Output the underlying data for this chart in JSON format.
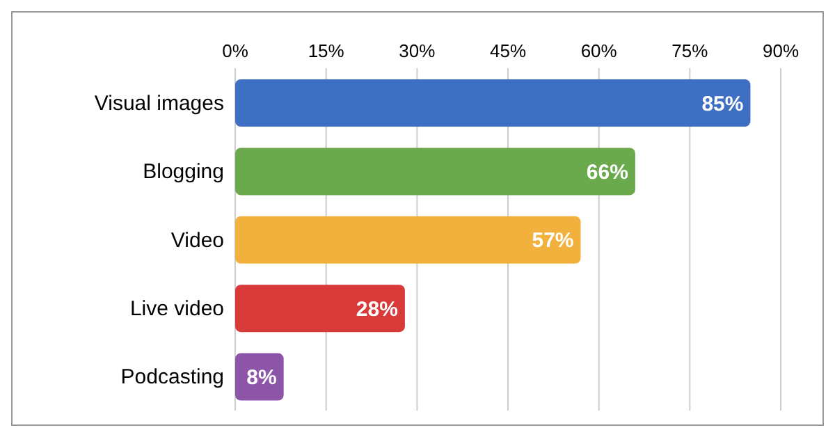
{
  "chart_data": {
    "type": "bar",
    "orientation": "horizontal",
    "categories": [
      "Visual images",
      "Blogging",
      "Video",
      "Live video",
      "Podcasting"
    ],
    "values": [
      85,
      66,
      57,
      28,
      8
    ],
    "colors": [
      "#3f6fc2",
      "#6aaa4c",
      "#f2b13c",
      "#d83a3a",
      "#8d55a8"
    ],
    "value_labels": [
      "85%",
      "66%",
      "57%",
      "28%",
      "8%"
    ],
    "xlim": [
      0,
      90
    ],
    "xticks": [
      {
        "value": 0,
        "label": "0%"
      },
      {
        "value": 15,
        "label": "15%"
      },
      {
        "value": 30,
        "label": "30%"
      },
      {
        "value": 45,
        "label": "45%"
      },
      {
        "value": 60,
        "label": "60%"
      },
      {
        "value": 75,
        "label": "75%"
      },
      {
        "value": 90,
        "label": "90%"
      }
    ],
    "grid": "x"
  }
}
